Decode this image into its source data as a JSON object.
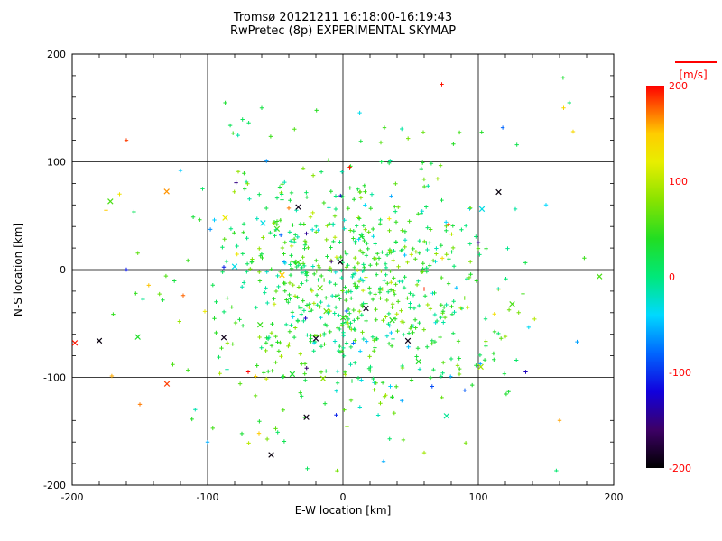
{
  "title": {
    "line1": "Tromsø 20121211 16:18:00-16:19:43",
    "line2": "RwPretec (8p) EXPERIMENTAL SKYMAP"
  },
  "axes": {
    "x_label": "E-W location [km]",
    "y_label": "N-S location [km]",
    "x_ticks": [
      -200,
      -100,
      0,
      100,
      200
    ],
    "y_ticks": [
      -200,
      -100,
      0,
      100,
      200
    ],
    "x_range": [
      -200,
      200
    ],
    "y_range": [
      -200,
      200
    ],
    "grid_values": [
      -100,
      0,
      100
    ]
  },
  "colorbar": {
    "label": "[m/s]",
    "ticks": [
      200,
      100,
      0,
      -100,
      -200
    ],
    "range": [
      -200,
      200
    ],
    "label_color": "#ff0000",
    "stops": [
      [
        -200,
        "#000000"
      ],
      [
        -160,
        "#3d0066"
      ],
      [
        -120,
        "#1100dd"
      ],
      [
        -80,
        "#0066ff"
      ],
      [
        -40,
        "#00d9ff"
      ],
      [
        0,
        "#00e87a"
      ],
      [
        40,
        "#22dd22"
      ],
      [
        80,
        "#88e300"
      ],
      [
        120,
        "#e8ee00"
      ],
      [
        150,
        "#ffcc00"
      ],
      [
        175,
        "#ff6600"
      ],
      [
        200,
        "#ff0000"
      ]
    ]
  },
  "colors": {
    "background": "#ffffff",
    "axis": "#000000",
    "title_text": "#000000",
    "dominant_point_green": "#22dd22"
  },
  "chart_data": {
    "type": "scatter",
    "title": "Tromsø 20121211 16:18:00-16:19:43 / RwPretec (8p) EXPERIMENTAL SKYMAP",
    "xlabel": "E-W location [km]",
    "ylabel": "N-S location [km]",
    "xlim": [
      -200,
      200
    ],
    "ylim": [
      -200,
      200
    ],
    "value_unit": "m/s",
    "value_range": [
      -200,
      200
    ],
    "grid": true,
    "legend_position": "colorbar-right",
    "cloud": {
      "description": "Dense cloud of ~800 small plus-markers, mostly green/teal (Doppler velocities near 0 to +60 m/s), gaussian-clustered slightly below and right of origin; occasional cross markers.",
      "count": 800,
      "center": [
        5,
        -15
      ],
      "sigma": [
        52,
        57
      ],
      "value_mean": 30,
      "value_sigma": 35,
      "cross_fraction": 0.025,
      "seed": 20121211
    },
    "notable_points_columns": [
      "x_km",
      "y_km",
      "velocity_ms",
      "marker(p=plus,x=cross)"
    ],
    "notable_points": [
      [
        -160,
        120,
        185,
        "p"
      ],
      [
        -165,
        70,
        130,
        "p"
      ],
      [
        -175,
        55,
        150,
        "p"
      ],
      [
        -198,
        -68,
        195,
        "x"
      ],
      [
        -180,
        -66,
        -195,
        "x"
      ],
      [
        -130,
        -106,
        185,
        "x"
      ],
      [
        -53,
        -172,
        -195,
        "x"
      ],
      [
        -27,
        -137,
        -190,
        "x"
      ],
      [
        115,
        72,
        -195,
        "x"
      ],
      [
        125,
        -32,
        55,
        "x"
      ],
      [
        73,
        172,
        195,
        "p"
      ],
      [
        163,
        150,
        140,
        "p"
      ],
      [
        160,
        -140,
        160,
        "p"
      ],
      [
        -87,
        48,
        125,
        "x"
      ],
      [
        -40,
        57,
        170,
        "p"
      ],
      [
        -118,
        -24,
        175,
        "p"
      ],
      [
        90,
        -112,
        -85,
        "p"
      ],
      [
        30,
        -178,
        -55,
        "p"
      ],
      [
        -62,
        -152,
        150,
        "p"
      ],
      [
        -5,
        -135,
        -105,
        "p"
      ],
      [
        48,
        -66,
        -190,
        "x"
      ],
      [
        -88,
        -63,
        -190,
        "x"
      ],
      [
        -20,
        -64,
        -185,
        "x"
      ],
      [
        -33,
        58,
        -190,
        "x"
      ],
      [
        17,
        -36,
        -190,
        "x"
      ],
      [
        60,
        -18,
        190,
        "p"
      ],
      [
        -2,
        7,
        -195,
        "x"
      ],
      [
        120,
        -62,
        85,
        "p"
      ],
      [
        170,
        128,
        140,
        "p"
      ],
      [
        28,
        118,
        60,
        "p"
      ],
      [
        -120,
        92,
        -45,
        "p"
      ],
      [
        78,
        42,
        180,
        "p"
      ],
      [
        135,
        -95,
        -130,
        "p"
      ],
      [
        -150,
        -125,
        170,
        "p"
      ],
      [
        60,
        -170,
        90,
        "p"
      ],
      [
        -100,
        -160,
        -55,
        "p"
      ],
      [
        150,
        60,
        -40,
        "p"
      ],
      [
        -60,
        150,
        25,
        "p"
      ],
      [
        173,
        -67,
        -60,
        "p"
      ],
      [
        -160,
        0,
        -110,
        "p"
      ],
      [
        5,
        95,
        195,
        "p"
      ],
      [
        -70,
        -95,
        200,
        "p"
      ],
      [
        100,
        25,
        -150,
        "p"
      ],
      [
        -45,
        -5,
        150,
        "x"
      ]
    ]
  }
}
